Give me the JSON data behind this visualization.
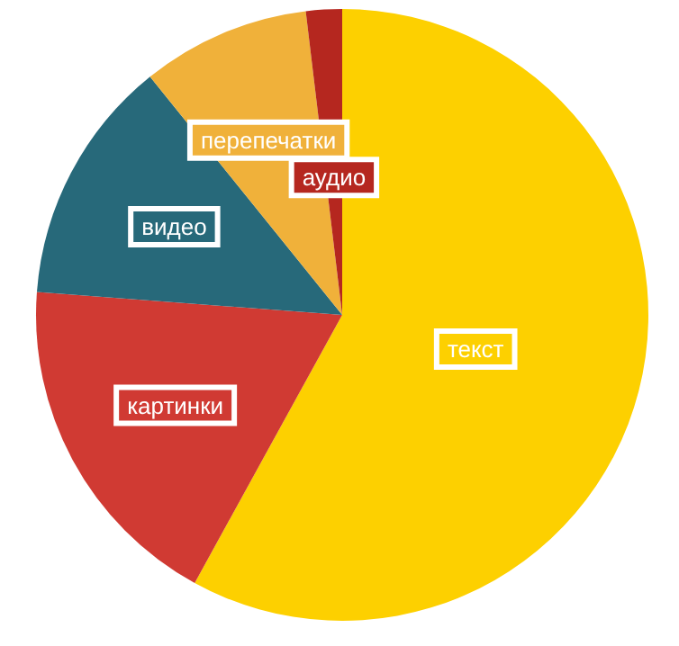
{
  "chart_data": {
    "type": "pie",
    "categories": [
      "текст",
      "картинки",
      "видео",
      "перепечатки",
      "аудио"
    ],
    "values": [
      58,
      18.2,
      13,
      8.9,
      1.9
    ],
    "colors": [
      "#fdd000",
      "#d03a33",
      "#27697a",
      "#f0b13a",
      "#b5271f"
    ],
    "legend": false
  }
}
